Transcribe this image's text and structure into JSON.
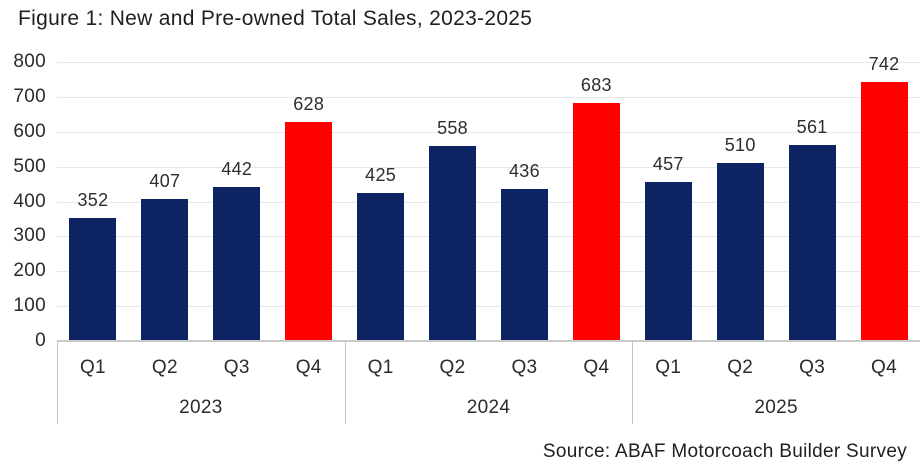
{
  "title": "Figure 1: New and Pre-owned Total Sales, 2023-2025",
  "source": "Source: ABAF Motorcoach Builder Survey",
  "chart_data": {
    "type": "bar",
    "title": "Figure 1: New and Pre-owned Total Sales, 2023-2025",
    "xlabel": "",
    "ylabel": "",
    "ylim": [
      0,
      800
    ],
    "yticks": [
      0,
      100,
      200,
      300,
      400,
      500,
      600,
      700,
      800
    ],
    "grid": true,
    "legend": "none",
    "groups": [
      {
        "year": "2023",
        "categories": [
          "Q1",
          "Q2",
          "Q3",
          "Q4"
        ],
        "values": [
          352,
          407,
          442,
          628
        ]
      },
      {
        "year": "2024",
        "categories": [
          "Q1",
          "Q2",
          "Q3",
          "Q4"
        ],
        "values": [
          425,
          558,
          436,
          683
        ]
      },
      {
        "year": "2025",
        "categories": [
          "Q1",
          "Q2",
          "Q3",
          "Q4"
        ],
        "values": [
          457,
          510,
          561,
          742
        ]
      }
    ],
    "highlight_category": "Q4",
    "colors": {
      "bar_default": "#0d2363",
      "bar_highlight": "#fe0000",
      "gridline": "#e8e8e8",
      "axis_line": "#c9c9c9",
      "text": "#2b2b2b"
    },
    "source": "Source: ABAF Motorcoach Builder Survey"
  }
}
